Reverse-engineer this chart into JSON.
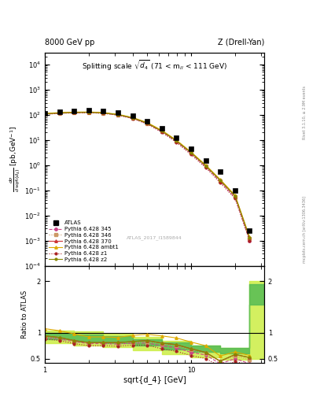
{
  "title_left": "8000 GeV pp",
  "title_right": "Z (Drell-Yan)",
  "plot_title": "Splitting scale $\\sqrt{d_4}$ (71 < m$_{ll}$ < 111 GeV)",
  "xlabel": "sqrt{d_4} [GeV]",
  "ylabel_main": "d$\\sigma$/dsqrt($d_4$) [pb,GeV$^{-1}$]",
  "ylabel_ratio": "Ratio to ATLAS",
  "watermark": "ATLAS_2017_I1589844",
  "rivet_text": "Rivet 3.1.10, ≥ 2.9M events",
  "mcplots_text": "mcplots.cern.ch [arXiv:1306.3436]",
  "atlas_x": [
    1.0,
    1.26,
    1.58,
    2.0,
    2.51,
    3.16,
    3.98,
    5.01,
    6.31,
    7.94,
    10.0,
    12.6,
    15.8,
    20.0,
    25.1
  ],
  "atlas_y": [
    115.0,
    130.0,
    145.0,
    155.0,
    145.0,
    125.0,
    90.0,
    55.0,
    28.0,
    12.0,
    4.5,
    1.5,
    0.55,
    0.1,
    0.0025
  ],
  "x_theory": [
    1.0,
    1.26,
    1.58,
    2.0,
    2.51,
    3.16,
    3.98,
    5.01,
    6.31,
    7.94,
    10.0,
    12.6,
    15.8,
    20.0,
    25.1
  ],
  "p345_y": [
    105.0,
    115.0,
    120.0,
    122.0,
    115.0,
    98.0,
    72.0,
    44.0,
    21.0,
    8.5,
    2.8,
    0.85,
    0.22,
    0.05,
    0.001
  ],
  "p346_y": [
    105.0,
    116.0,
    121.0,
    123.0,
    116.0,
    99.0,
    73.0,
    45.0,
    22.0,
    9.0,
    3.0,
    0.9,
    0.24,
    0.055,
    0.0012
  ],
  "p370_y": [
    108.0,
    118.0,
    123.0,
    125.0,
    118.0,
    101.0,
    75.0,
    46.5,
    22.5,
    9.2,
    3.1,
    0.93,
    0.25,
    0.058,
    0.0013
  ],
  "pambt1_y": [
    112.0,
    122.0,
    127.0,
    129.0,
    122.0,
    104.0,
    78.0,
    49.0,
    24.0,
    9.8,
    3.3,
    1.0,
    0.27,
    0.063,
    0.0014
  ],
  "pz1_y": [
    104.0,
    113.0,
    118.0,
    120.0,
    113.0,
    96.0,
    70.0,
    43.0,
    20.0,
    8.0,
    2.6,
    0.78,
    0.2,
    0.046,
    0.001
  ],
  "pz2_y": [
    108.0,
    118.0,
    123.0,
    125.0,
    118.0,
    101.0,
    75.0,
    46.5,
    22.5,
    9.2,
    3.1,
    0.93,
    0.25,
    0.058,
    0.0013
  ],
  "color_345": "#cc4488",
  "color_346": "#cc9966",
  "color_370": "#cc3333",
  "color_ambt1": "#ddaa00",
  "color_z1": "#aa2222",
  "color_z2": "#888800",
  "ratio_345": [
    0.91,
    0.88,
    0.83,
    0.79,
    0.79,
    0.78,
    0.8,
    0.8,
    0.75,
    0.71,
    0.62,
    0.57,
    0.4,
    0.5,
    0.4
  ],
  "ratio_346": [
    0.91,
    0.89,
    0.83,
    0.79,
    0.8,
    0.79,
    0.81,
    0.82,
    0.79,
    0.75,
    0.67,
    0.6,
    0.44,
    0.55,
    0.48
  ],
  "ratio_370": [
    0.94,
    0.91,
    0.85,
    0.81,
    0.81,
    0.81,
    0.83,
    0.85,
    0.8,
    0.77,
    0.69,
    0.62,
    0.45,
    0.58,
    0.52
  ],
  "ratio_ambt1": [
    1.08,
    1.04,
    0.98,
    0.92,
    0.92,
    0.91,
    0.95,
    0.97,
    0.94,
    0.9,
    0.82,
    0.75,
    0.55,
    0.63,
    0.56
  ],
  "ratio_z1": [
    0.88,
    0.85,
    0.79,
    0.75,
    0.75,
    0.74,
    0.76,
    0.76,
    0.69,
    0.64,
    0.56,
    0.5,
    0.35,
    0.44,
    0.38
  ],
  "ratio_z2": [
    0.94,
    0.91,
    0.85,
    0.81,
    0.81,
    0.81,
    0.83,
    0.85,
    0.8,
    0.77,
    0.69,
    0.62,
    0.45,
    0.58,
    0.52
  ],
  "band_x_edges": [
    1.0,
    1.58,
    2.51,
    3.98,
    6.31,
    10.0,
    15.8,
    25.1,
    31.6
  ],
  "band_yellow_lo": [
    0.8,
    0.76,
    0.72,
    0.66,
    0.59,
    0.52,
    0.48,
    0.5,
    0.5
  ],
  "band_yellow_hi": [
    1.05,
    1.02,
    0.98,
    0.92,
    0.85,
    0.76,
    0.7,
    2.0,
    2.0
  ],
  "band_green_lo": [
    0.87,
    0.83,
    0.8,
    0.75,
    0.68,
    0.63,
    0.6,
    1.55,
    1.55
  ],
  "band_green_hi": [
    1.0,
    0.97,
    0.93,
    0.88,
    0.82,
    0.75,
    0.7,
    1.95,
    1.95
  ],
  "ylim_main": [
    0.0001,
    30000.0
  ],
  "ylim_ratio": [
    0.42,
    2.3
  ],
  "xlim": [
    1.0,
    31.6
  ]
}
